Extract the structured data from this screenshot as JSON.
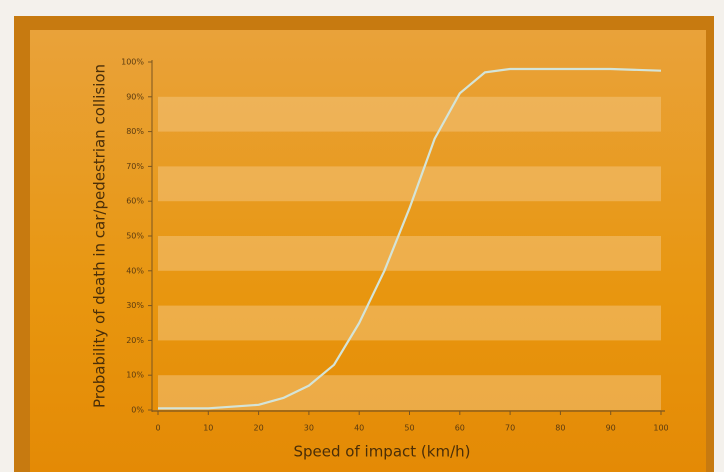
{
  "chart_data": {
    "type": "line",
    "x_label": "Speed of impact (km/h)",
    "y_label": "Probability of death in car/pedestrian collision",
    "x": [
      0,
      10,
      20,
      25,
      30,
      35,
      40,
      45,
      50,
      55,
      60,
      65,
      70,
      80,
      90,
      100
    ],
    "values": [
      0.5,
      0.5,
      1.5,
      3.5,
      7,
      13,
      25,
      40,
      58,
      78,
      91,
      97,
      98,
      98,
      98,
      97.5
    ],
    "color": "#d4e4d8",
    "xlim": [
      0,
      100
    ],
    "xticks": [
      0,
      10,
      20,
      30,
      40,
      50,
      60,
      70,
      80,
      90,
      100
    ],
    "ylim": [
      0,
      100
    ],
    "yticks": [
      {
        "value": 0,
        "label": "0%"
      },
      {
        "value": 10,
        "label": "10%"
      },
      {
        "value": 20,
        "label": "20%"
      },
      {
        "value": 30,
        "label": "30%"
      },
      {
        "value": 40,
        "label": "40%"
      },
      {
        "value": 50,
        "label": "50%"
      },
      {
        "value": 60,
        "label": "60%"
      },
      {
        "value": 70,
        "label": "70%"
      },
      {
        "value": 80,
        "label": "80%"
      },
      {
        "value": 90,
        "label": "90%"
      },
      {
        "value": 100,
        "label": "100%"
      }
    ],
    "bands": true
  }
}
